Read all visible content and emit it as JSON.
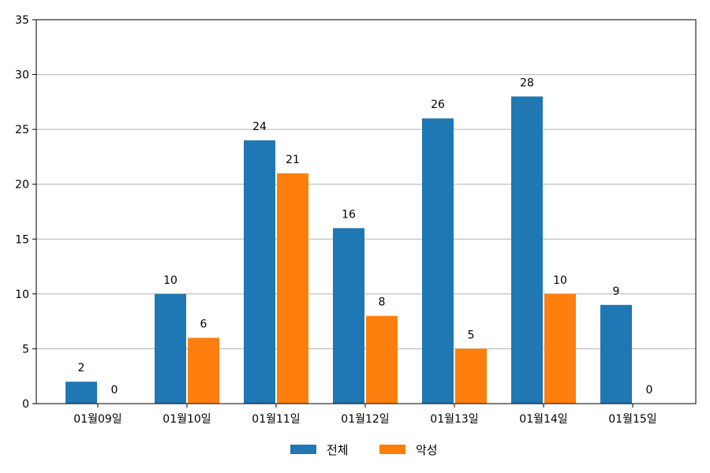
{
  "chart_data": {
    "type": "bar",
    "categories": [
      "01월09일",
      "01월10일",
      "01월11일",
      "01월12일",
      "01월13일",
      "01월14일",
      "01월15일"
    ],
    "series": [
      {
        "name": "전체",
        "values": [
          2,
          10,
          24,
          16,
          26,
          28,
          9
        ],
        "color": "#1f77b4"
      },
      {
        "name": "악성",
        "values": [
          0,
          6,
          21,
          8,
          5,
          10,
          0
        ],
        "color": "#ff7f0e"
      }
    ],
    "ylim": [
      0,
      35
    ],
    "yticks": [
      0,
      5,
      10,
      15,
      20,
      25,
      30,
      35
    ],
    "grid": "horizontal",
    "legend_position": "bottom-center",
    "title": "",
    "xlabel": "",
    "ylabel": ""
  }
}
